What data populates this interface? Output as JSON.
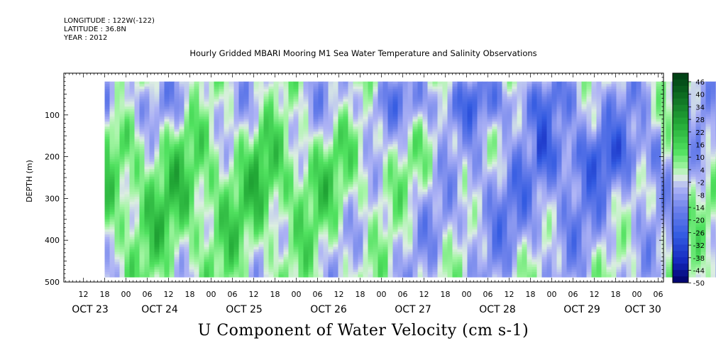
{
  "meta": {
    "longitude": "LONGITUDE : 122W(-122)",
    "latitude": "LATITUDE : 36.8N",
    "year": "YEAR : 2012"
  },
  "chart_data": {
    "type": "heatmap",
    "title": "Hourly Gridded MBARI Mooring M1 Sea Water Temperature and Salinity Observations",
    "xlabel": "U Component of Water Velocity (cm s-1)",
    "ylabel": "DEPTH (m)",
    "ylim": [
      500,
      0
    ],
    "y_ticks": [
      100,
      200,
      300,
      400,
      500
    ],
    "x_hour_ticks": [
      "12",
      "18",
      "00",
      "06",
      "12",
      "18",
      "00",
      "06",
      "12",
      "18",
      "00",
      "06",
      "12",
      "18",
      "00",
      "06",
      "12",
      "18",
      "00",
      "06",
      "12",
      "18",
      "00",
      "06",
      "12",
      "18",
      "00",
      "06"
    ],
    "x_day_labels": [
      "OCT 23",
      "OCT 24",
      "OCT 25",
      "OCT 26",
      "OCT 27",
      "OCT 28",
      "OCT 29",
      "OCT 30"
    ],
    "x_range_hours_from_oct23_00": [
      6.5,
      206
    ],
    "data_depth_range": [
      20,
      485
    ],
    "colorbar": {
      "labels": [
        "46",
        "40",
        "34",
        "28",
        "22",
        "16",
        "10",
        "4",
        "-2",
        "-8",
        "-14",
        "-20",
        "-26",
        "-32",
        "-38",
        "-44",
        "-50"
      ],
      "range": [
        -50,
        49
      ],
      "step": 3
    },
    "grid": false,
    "legend": "colorbar-right"
  }
}
